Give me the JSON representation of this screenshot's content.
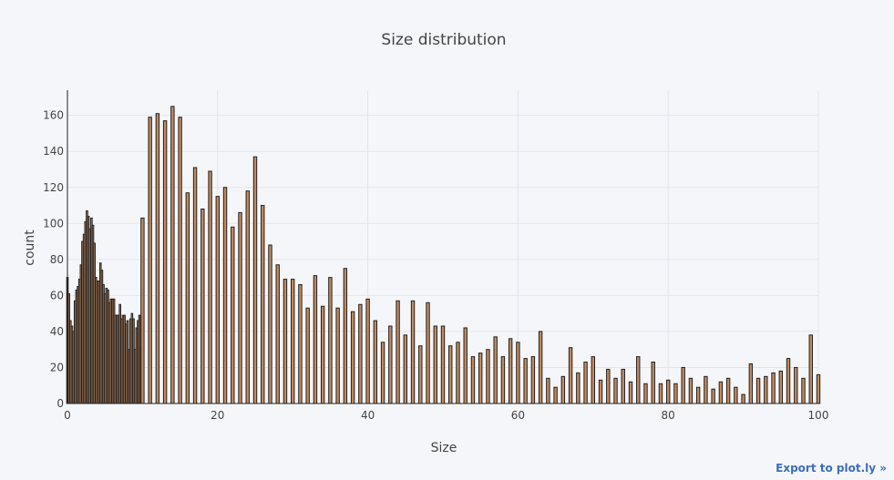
{
  "chart_data": {
    "type": "bar",
    "title": "Size distribution",
    "xlabel": "Size",
    "ylabel": "count",
    "xlim": [
      0,
      100
    ],
    "ylim": [
      0,
      174
    ],
    "x_ticks": [
      0,
      20,
      40,
      60,
      80,
      100
    ],
    "y_ticks": [
      0,
      20,
      40,
      60,
      80,
      100,
      120,
      140,
      160
    ],
    "grid": true,
    "bar_fill": "#c48a5e",
    "bar_outline": "#222222",
    "bars": [
      {
        "x": 0.0,
        "y": 70
      },
      {
        "x": 0.2,
        "y": 61
      },
      {
        "x": 0.4,
        "y": 46
      },
      {
        "x": 0.6,
        "y": 43
      },
      {
        "x": 0.8,
        "y": 40
      },
      {
        "x": 1.0,
        "y": 57
      },
      {
        "x": 1.2,
        "y": 63
      },
      {
        "x": 1.4,
        "y": 65
      },
      {
        "x": 1.6,
        "y": 69
      },
      {
        "x": 1.8,
        "y": 77
      },
      {
        "x": 2.0,
        "y": 90
      },
      {
        "x": 2.2,
        "y": 94
      },
      {
        "x": 2.4,
        "y": 101
      },
      {
        "x": 2.6,
        "y": 107
      },
      {
        "x": 2.8,
        "y": 104
      },
      {
        "x": 3.0,
        "y": 97
      },
      {
        "x": 3.2,
        "y": 103
      },
      {
        "x": 3.4,
        "y": 99
      },
      {
        "x": 3.6,
        "y": 89
      },
      {
        "x": 3.8,
        "y": 70
      },
      {
        "x": 4.0,
        "y": 68
      },
      {
        "x": 4.2,
        "y": 68
      },
      {
        "x": 4.4,
        "y": 78
      },
      {
        "x": 4.6,
        "y": 74
      },
      {
        "x": 4.8,
        "y": 66
      },
      {
        "x": 5.0,
        "y": 61
      },
      {
        "x": 5.2,
        "y": 64
      },
      {
        "x": 5.4,
        "y": 63
      },
      {
        "x": 5.6,
        "y": 56
      },
      {
        "x": 5.8,
        "y": 58
      },
      {
        "x": 6.0,
        "y": 58
      },
      {
        "x": 6.2,
        "y": 58
      },
      {
        "x": 6.4,
        "y": 49
      },
      {
        "x": 6.6,
        "y": 49
      },
      {
        "x": 6.8,
        "y": 49
      },
      {
        "x": 7.0,
        "y": 55
      },
      {
        "x": 7.2,
        "y": 47
      },
      {
        "x": 7.4,
        "y": 49
      },
      {
        "x": 7.6,
        "y": 49
      },
      {
        "x": 7.8,
        "y": 44
      },
      {
        "x": 8.0,
        "y": 46
      },
      {
        "x": 8.2,
        "y": 30
      },
      {
        "x": 8.4,
        "y": 47
      },
      {
        "x": 8.6,
        "y": 50
      },
      {
        "x": 8.8,
        "y": 47
      },
      {
        "x": 9.0,
        "y": 30
      },
      {
        "x": 9.2,
        "y": 42
      },
      {
        "x": 9.4,
        "y": 46
      },
      {
        "x": 9.6,
        "y": 49
      },
      {
        "x": 9.8,
        "y": 31
      },
      {
        "x": 10,
        "y": 103
      },
      {
        "x": 11,
        "y": 159
      },
      {
        "x": 12,
        "y": 161
      },
      {
        "x": 13,
        "y": 157
      },
      {
        "x": 14,
        "y": 165
      },
      {
        "x": 15,
        "y": 159
      },
      {
        "x": 16,
        "y": 117
      },
      {
        "x": 17,
        "y": 131
      },
      {
        "x": 18,
        "y": 108
      },
      {
        "x": 19,
        "y": 129
      },
      {
        "x": 20,
        "y": 115
      },
      {
        "x": 21,
        "y": 120
      },
      {
        "x": 22,
        "y": 98
      },
      {
        "x": 23,
        "y": 106
      },
      {
        "x": 24,
        "y": 118
      },
      {
        "x": 25,
        "y": 137
      },
      {
        "x": 26,
        "y": 110
      },
      {
        "x": 27,
        "y": 88
      },
      {
        "x": 28,
        "y": 77
      },
      {
        "x": 29,
        "y": 69
      },
      {
        "x": 30,
        "y": 69
      },
      {
        "x": 31,
        "y": 66
      },
      {
        "x": 32,
        "y": 53
      },
      {
        "x": 33,
        "y": 71
      },
      {
        "x": 34,
        "y": 54
      },
      {
        "x": 35,
        "y": 70
      },
      {
        "x": 36,
        "y": 53
      },
      {
        "x": 37,
        "y": 75
      },
      {
        "x": 38,
        "y": 51
      },
      {
        "x": 39,
        "y": 55
      },
      {
        "x": 40,
        "y": 58
      },
      {
        "x": 41,
        "y": 46
      },
      {
        "x": 42,
        "y": 34
      },
      {
        "x": 43,
        "y": 43
      },
      {
        "x": 44,
        "y": 57
      },
      {
        "x": 45,
        "y": 38
      },
      {
        "x": 46,
        "y": 57
      },
      {
        "x": 47,
        "y": 32
      },
      {
        "x": 48,
        "y": 56
      },
      {
        "x": 49,
        "y": 43
      },
      {
        "x": 50,
        "y": 43
      },
      {
        "x": 51,
        "y": 32
      },
      {
        "x": 52,
        "y": 34
      },
      {
        "x": 53,
        "y": 42
      },
      {
        "x": 54,
        "y": 26
      },
      {
        "x": 55,
        "y": 28
      },
      {
        "x": 56,
        "y": 30
      },
      {
        "x": 57,
        "y": 37
      },
      {
        "x": 58,
        "y": 26
      },
      {
        "x": 59,
        "y": 36
      },
      {
        "x": 60,
        "y": 34
      },
      {
        "x": 61,
        "y": 25
      },
      {
        "x": 62,
        "y": 26
      },
      {
        "x": 63,
        "y": 40
      },
      {
        "x": 64,
        "y": 14
      },
      {
        "x": 65,
        "y": 9
      },
      {
        "x": 66,
        "y": 15
      },
      {
        "x": 67,
        "y": 31
      },
      {
        "x": 68,
        "y": 17
      },
      {
        "x": 69,
        "y": 23
      },
      {
        "x": 70,
        "y": 26
      },
      {
        "x": 71,
        "y": 13
      },
      {
        "x": 72,
        "y": 19
      },
      {
        "x": 73,
        "y": 14
      },
      {
        "x": 74,
        "y": 19
      },
      {
        "x": 75,
        "y": 12
      },
      {
        "x": 76,
        "y": 26
      },
      {
        "x": 77,
        "y": 11
      },
      {
        "x": 78,
        "y": 23
      },
      {
        "x": 79,
        "y": 11
      },
      {
        "x": 80,
        "y": 13
      },
      {
        "x": 81,
        "y": 11
      },
      {
        "x": 82,
        "y": 20
      },
      {
        "x": 83,
        "y": 14
      },
      {
        "x": 84,
        "y": 9
      },
      {
        "x": 85,
        "y": 15
      },
      {
        "x": 86,
        "y": 8
      },
      {
        "x": 87,
        "y": 12
      },
      {
        "x": 88,
        "y": 14
      },
      {
        "x": 89,
        "y": 9
      },
      {
        "x": 90,
        "y": 5
      },
      {
        "x": 91,
        "y": 22
      },
      {
        "x": 92,
        "y": 14
      },
      {
        "x": 93,
        "y": 15
      },
      {
        "x": 94,
        "y": 17
      },
      {
        "x": 95,
        "y": 18
      },
      {
        "x": 96,
        "y": 25
      },
      {
        "x": 97,
        "y": 20
      },
      {
        "x": 98,
        "y": 14
      },
      {
        "x": 99,
        "y": 38
      },
      {
        "x": 100,
        "y": 16
      }
    ]
  },
  "export_link": {
    "label": "Export to plot.ly »"
  }
}
